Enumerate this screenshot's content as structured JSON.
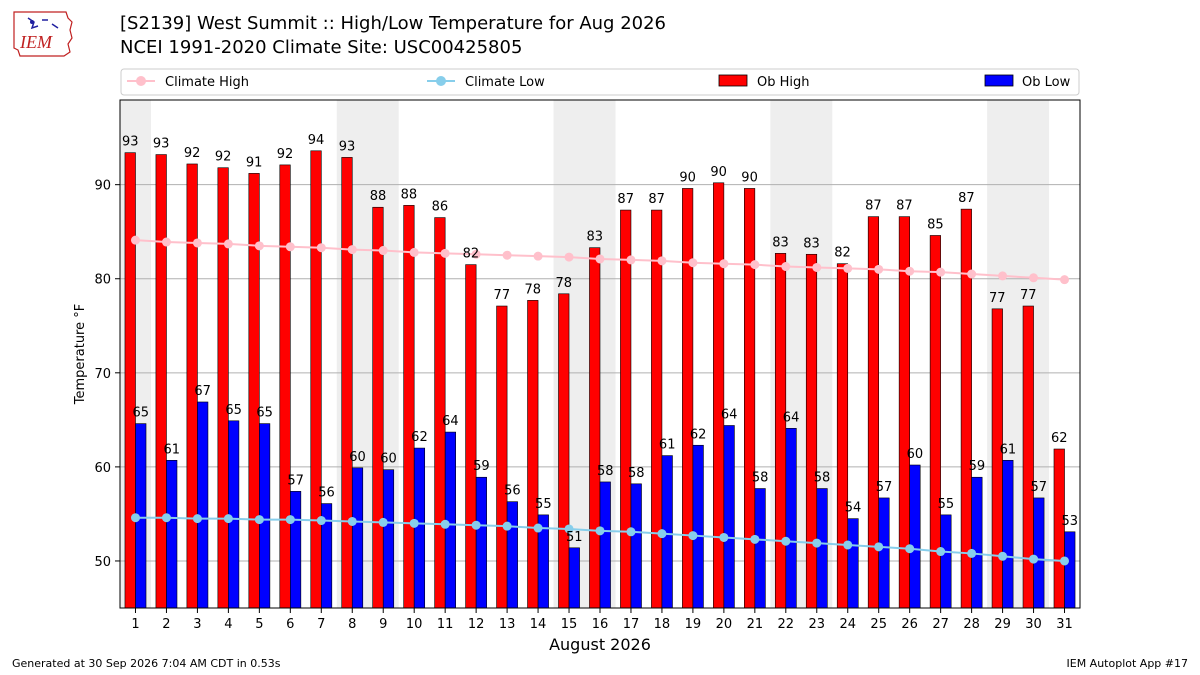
{
  "header": {
    "title_line1": "[S2139] West Summit :: High/Low Temperature for Aug 2026",
    "title_line2": "NCEI 1991-2020 Climate Site: USC00425805",
    "logo_text": "IEM"
  },
  "footer": {
    "generated": "Generated at 30 Sep 2026 7:04 AM CDT in 0.53s",
    "app": "IEM Autoplot App #17"
  },
  "colors": {
    "ob_high": "#ff0000",
    "ob_low": "#0000ff",
    "climate_high": "#ffc0cb",
    "climate_low": "#87ceeb",
    "weekend_shade": "#eeeeee",
    "grid": "#b0b0b0"
  },
  "chart_data": {
    "type": "bar",
    "xlabel": "August 2026",
    "ylabel": "Temperature °F",
    "ylim": [
      45,
      99
    ],
    "yticks": [
      50,
      60,
      70,
      80,
      90
    ],
    "grid": "horizontal",
    "legend_position": "top",
    "shaded_days": [
      [
        1,
        1
      ],
      [
        8,
        9
      ],
      [
        15,
        16
      ],
      [
        22,
        23
      ],
      [
        29,
        30
      ]
    ],
    "x": [
      1,
      2,
      3,
      4,
      5,
      6,
      7,
      8,
      9,
      10,
      11,
      12,
      13,
      14,
      15,
      16,
      17,
      18,
      19,
      20,
      21,
      22,
      23,
      24,
      25,
      26,
      27,
      28,
      29,
      30,
      31
    ],
    "series": [
      {
        "name": "Climate High",
        "kind": "line",
        "values": [
          84.1,
          83.9,
          83.8,
          83.7,
          83.5,
          83.4,
          83.3,
          83.1,
          83.0,
          82.8,
          82.7,
          82.6,
          82.5,
          82.4,
          82.3,
          82.1,
          82.0,
          81.9,
          81.7,
          81.6,
          81.5,
          81.3,
          81.2,
          81.1,
          81.0,
          80.8,
          80.7,
          80.5,
          80.3,
          80.1,
          79.9
        ]
      },
      {
        "name": "Climate Low",
        "kind": "line",
        "values": [
          54.6,
          54.6,
          54.5,
          54.5,
          54.4,
          54.4,
          54.3,
          54.2,
          54.1,
          54.0,
          53.9,
          53.8,
          53.7,
          53.5,
          53.4,
          53.2,
          53.1,
          52.9,
          52.7,
          52.5,
          52.3,
          52.1,
          51.9,
          51.7,
          51.5,
          51.3,
          51.0,
          50.8,
          50.5,
          50.2,
          50.0
        ]
      },
      {
        "name": "Ob High",
        "kind": "bar",
        "values": [
          93.4,
          93.2,
          92.2,
          91.8,
          91.2,
          92.1,
          93.6,
          92.9,
          87.6,
          87.8,
          86.5,
          81.5,
          77.1,
          77.7,
          78.4,
          83.3,
          87.3,
          87.3,
          89.6,
          90.2,
          89.6,
          82.7,
          82.6,
          81.6,
          86.6,
          86.6,
          84.6,
          87.4,
          76.8,
          77.1,
          61.9
        ],
        "labels": [
          "93",
          "93",
          "92",
          "92",
          "91",
          "92",
          "94",
          "93",
          "88",
          "88",
          "86",
          "82",
          "77",
          "78",
          "78",
          "83",
          "87",
          "87",
          "90",
          "90",
          "90",
          "83",
          "83",
          "82",
          "87",
          "87",
          "85",
          "87",
          "77",
          "77",
          "62"
        ]
      },
      {
        "name": "Ob Low",
        "kind": "bar",
        "values": [
          64.6,
          60.7,
          66.9,
          64.9,
          64.6,
          57.4,
          56.1,
          59.9,
          59.7,
          62.0,
          63.7,
          58.9,
          56.3,
          54.9,
          51.4,
          58.4,
          58.2,
          61.2,
          62.3,
          64.4,
          57.7,
          64.1,
          57.7,
          54.5,
          56.7,
          60.2,
          54.9,
          58.9,
          60.7,
          56.7,
          53.1
        ],
        "labels": [
          "65",
          "61",
          "67",
          "65",
          "65",
          "57",
          "56",
          "60",
          "60",
          "62",
          "64",
          "59",
          "56",
          "55",
          "51",
          "58",
          "58",
          "61",
          "62",
          "64",
          "58",
          "64",
          "58",
          "54",
          "57",
          "60",
          "55",
          "59",
          "61",
          "57",
          "53"
        ]
      }
    ]
  }
}
